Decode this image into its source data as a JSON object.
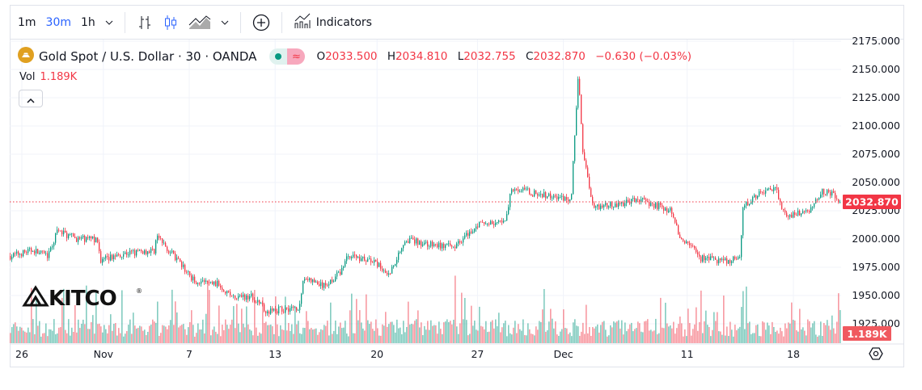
{
  "toolbar": {
    "intervals": [
      "1m",
      "30m",
      "1h"
    ],
    "active_interval": "30m",
    "indicators_label": "Indicators",
    "icons": [
      "chevron-down-icon",
      "bar-chart-icon",
      "candles-icon",
      "area-chart-icon",
      "chevron-down-icon",
      "plus-circle-icon",
      "indicators-icon"
    ]
  },
  "legend": {
    "symbol": "Gold Spot / U.S. Dollar · 30 · OANDA",
    "open_label": "O",
    "open": "2033.500",
    "high_label": "H",
    "high": "2034.810",
    "low_label": "L",
    "low": "2032.755",
    "close_label": "C",
    "close": "2032.870",
    "change": "−0.630 (−0.03%)",
    "market_status_icon": "≈"
  },
  "volume": {
    "label": "Vol",
    "value": "1.189K"
  },
  "logo_text": "KITCO",
  "colors": {
    "up": "#089981",
    "down": "#f23645",
    "accent": "#2962ff",
    "grid": "#f0f3fa"
  },
  "chart_data": {
    "type": "candlestick",
    "title": "Gold Spot / U.S. Dollar · 30 · OANDA",
    "x_unit": "trading days since Oct 26 (approx.)",
    "x_range": [
      -0.8,
      56.3
    ],
    "ylim": [
      1910,
      2180
    ],
    "y_ticks": [
      "2175.000",
      "2150.000",
      "2125.000",
      "2100.000",
      "2075.000",
      "2050.000",
      "2025.000",
      "2000.000",
      "1975.000",
      "1950.000",
      "1925.000"
    ],
    "y_tick_values": [
      2175,
      2150,
      2125,
      2100,
      2075,
      2050,
      2025,
      2000,
      1975,
      1950,
      1925
    ],
    "x_ticks": [
      {
        "label": "26",
        "t": 0
      },
      {
        "label": "Nov",
        "t": 5.6
      },
      {
        "label": "7",
        "t": 11.5
      },
      {
        "label": "13",
        "t": 17.4
      },
      {
        "label": "20",
        "t": 24.4
      },
      {
        "label": "27",
        "t": 31.3
      },
      {
        "label": "Dec",
        "t": 37.2
      },
      {
        "label": "11",
        "t": 45.7
      },
      {
        "label": "18",
        "t": 53
      }
    ],
    "price_path": [
      [
        -0.8,
        1985
      ],
      [
        0.7,
        1990
      ],
      [
        1.8,
        1985
      ],
      [
        2.4,
        2007
      ],
      [
        3.8,
        2000
      ],
      [
        5.1,
        2000
      ],
      [
        5.4,
        1981
      ],
      [
        6.8,
        1987
      ],
      [
        9.1,
        1990
      ],
      [
        9.2,
        2003
      ],
      [
        10.4,
        1985
      ],
      [
        11.8,
        1963
      ],
      [
        13.5,
        1960
      ],
      [
        14.6,
        1947
      ],
      [
        15.7,
        1950
      ],
      [
        16.8,
        1936
      ],
      [
        19.1,
        1940
      ],
      [
        19.3,
        1966
      ],
      [
        20.7,
        1958
      ],
      [
        21.8,
        1970
      ],
      [
        22.4,
        1986
      ],
      [
        24.1,
        1980
      ],
      [
        25.2,
        1969
      ],
      [
        26.3,
        2000
      ],
      [
        27.9,
        1995
      ],
      [
        29.6,
        1993
      ],
      [
        31.3,
        2013
      ],
      [
        33.2,
        2015
      ],
      [
        33.6,
        2046
      ],
      [
        35.2,
        2040
      ],
      [
        37.7,
        2035
      ],
      [
        37.9,
        2084
      ],
      [
        38.2,
        2148
      ],
      [
        38.5,
        2078
      ],
      [
        39.2,
        2029
      ],
      [
        40.7,
        2030
      ],
      [
        42.4,
        2035
      ],
      [
        44.6,
        2025
      ],
      [
        45.2,
        2000
      ],
      [
        46.3,
        1990
      ],
      [
        46.6,
        1983
      ],
      [
        48.5,
        1980
      ],
      [
        49.3,
        1984
      ],
      [
        49.5,
        2030
      ],
      [
        50.7,
        2040
      ],
      [
        51.8,
        2044
      ],
      [
        52.4,
        2020
      ],
      [
        54.1,
        2025
      ],
      [
        54.9,
        2043
      ],
      [
        56.0,
        2038
      ],
      [
        56.3,
        2033
      ]
    ],
    "last_price": 2032.87,
    "last_price_label": "2032.870",
    "last_volume_label": "1.189K",
    "series": [
      {
        "name": "Price"
      },
      {
        "name": "Volume"
      }
    ]
  }
}
